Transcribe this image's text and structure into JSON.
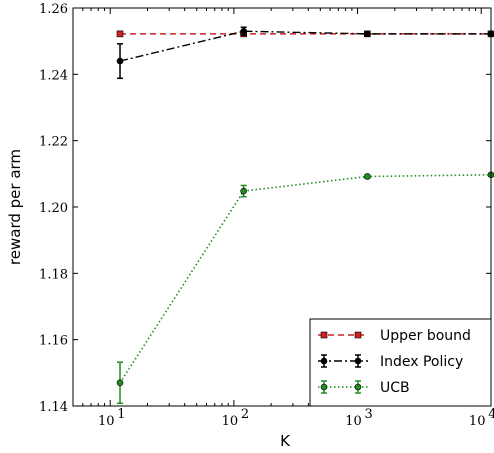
{
  "chart_data": {
    "type": "line",
    "xlabel": "K",
    "ylabel": "reward per arm",
    "x_scale": "log",
    "xlim": [
      5,
      12000
    ],
    "ylim": [
      1.14,
      1.26
    ],
    "x_ticks": [
      {
        "value": 10,
        "base": "10",
        "exp": "1"
      },
      {
        "value": 100,
        "base": "10",
        "exp": "2"
      },
      {
        "value": 1000,
        "base": "10",
        "exp": "3"
      },
      {
        "value": 10000,
        "base": "10",
        "exp": "4"
      }
    ],
    "y_ticks": [
      {
        "value": 1.14,
        "label": "1.14"
      },
      {
        "value": 1.16,
        "label": "1.16"
      },
      {
        "value": 1.18,
        "label": "1.18"
      },
      {
        "value": 1.2,
        "label": "1.20"
      },
      {
        "value": 1.22,
        "label": "1.22"
      },
      {
        "value": 1.24,
        "label": "1.24"
      },
      {
        "value": 1.26,
        "label": "1.26"
      }
    ],
    "grid": false,
    "legend_position": "bottom-right",
    "series": [
      {
        "name": "Upper bound",
        "color": "#cc2222",
        "line_style": "dashed",
        "marker": "square",
        "points": [
          {
            "x": 12,
            "y": 1.2522,
            "err": 0
          },
          {
            "x": 120,
            "y": 1.2522,
            "err": 0
          },
          {
            "x": 1200,
            "y": 1.2522,
            "err": 0
          },
          {
            "x": 12000,
            "y": 1.2522,
            "err": 0
          }
        ]
      },
      {
        "name": "Index Policy",
        "color": "#000000",
        "line_style": "dashdot",
        "marker": "circle",
        "points": [
          {
            "x": 12,
            "y": 1.244,
            "err": 0.0052
          },
          {
            "x": 120,
            "y": 1.253,
            "err": 0.0012
          },
          {
            "x": 1200,
            "y": 1.2522,
            "err": 0.0004
          },
          {
            "x": 12000,
            "y": 1.2522,
            "err": 0.0003
          }
        ]
      },
      {
        "name": "UCB",
        "color": "#228b22",
        "line_style": "dotted",
        "marker": "circle",
        "points": [
          {
            "x": 12,
            "y": 1.147,
            "err": 0.0062
          },
          {
            "x": 120,
            "y": 1.2048,
            "err": 0.0017
          },
          {
            "x": 1200,
            "y": 1.2092,
            "err": 0.0005
          },
          {
            "x": 12000,
            "y": 1.2097,
            "err": 0.0004
          }
        ]
      }
    ]
  }
}
